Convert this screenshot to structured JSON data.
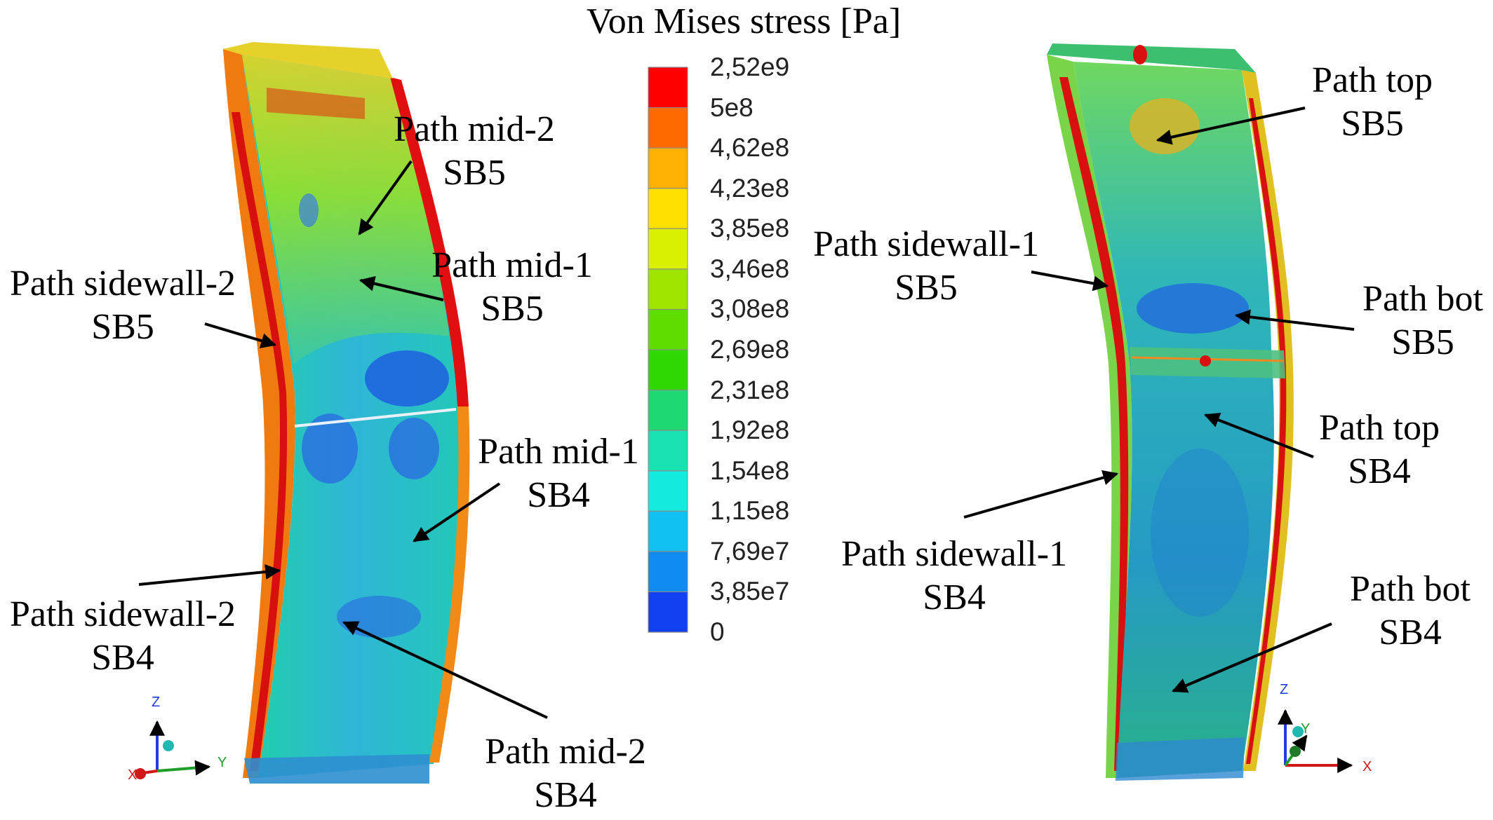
{
  "colorbar": {
    "title": "Von Mises stress [Pa]",
    "ticks": [
      "2,52e9",
      "5e8",
      "4,62e8",
      "4,23e8",
      "3,85e8",
      "3,46e8",
      "3,08e8",
      "2,69e8",
      "2,31e8",
      "1,92e8",
      "1,54e8",
      "1,15e8",
      "7,69e7",
      "3,85e7",
      "0"
    ],
    "colors": [
      "#ff0000",
      "#ff6a00",
      "#ffb000",
      "#ffe000",
      "#d9f000",
      "#9ee600",
      "#5fdc00",
      "#2ed800",
      "#1ed873",
      "#18e2b0",
      "#15eadf",
      "#10c0f0",
      "#108cf0",
      "#1040f0",
      "#0000e0"
    ]
  },
  "left_model": {
    "labels": [
      {
        "line1": "Path mid-2",
        "line2": "SB5"
      },
      {
        "line1": "Path mid-1",
        "line2": "SB5"
      },
      {
        "line1": "Path sidewall-2",
        "line2": "SB5"
      },
      {
        "line1": "Path mid-1",
        "line2": "SB4"
      },
      {
        "line1": "Path sidewall-2",
        "line2": "SB4"
      },
      {
        "line1": "Path mid-2",
        "line2": "SB4"
      }
    ],
    "triad": {
      "z": "Z",
      "x": "X",
      "y": "Y"
    }
  },
  "right_model": {
    "labels": [
      {
        "line1": "Path top",
        "line2": "SB5"
      },
      {
        "line1": "Path sidewall-1",
        "line2": "SB5"
      },
      {
        "line1": "Path bot",
        "line2": "SB5"
      },
      {
        "line1": "Path top",
        "line2": "SB4"
      },
      {
        "line1": "Path sidewall-1",
        "line2": "SB4"
      },
      {
        "line1": "Path bot",
        "line2": "SB4"
      }
    ],
    "triad": {
      "z": "Z",
      "x": "X",
      "y": "Y"
    }
  }
}
